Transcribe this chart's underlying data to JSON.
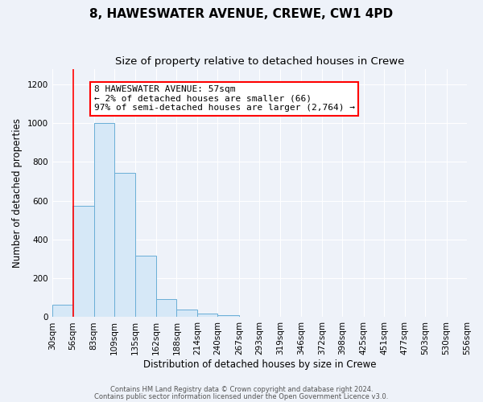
{
  "title": "8, HAWESWATER AVENUE, CREWE, CW1 4PD",
  "subtitle": "Size of property relative to detached houses in Crewe",
  "xlabel": "Distribution of detached houses by size in Crewe",
  "ylabel": "Number of detached properties",
  "bar_edges": [
    30,
    56,
    83,
    109,
    135,
    162,
    188,
    214,
    240,
    267,
    293,
    319,
    346,
    372,
    398,
    425,
    451,
    477,
    503,
    530,
    556
  ],
  "bar_heights": [
    65,
    575,
    1000,
    745,
    315,
    95,
    40,
    20,
    10,
    0,
    0,
    0,
    0,
    0,
    0,
    0,
    0,
    0,
    0,
    0
  ],
  "bar_color": "#d6e8f7",
  "bar_edge_color": "#6aaed6",
  "red_line_x": 57,
  "ylim": [
    0,
    1280
  ],
  "yticks": [
    0,
    200,
    400,
    600,
    800,
    1000,
    1200
  ],
  "annotation_line1": "8 HAWESWATER AVENUE: 57sqm",
  "annotation_line2": "← 2% of detached houses are smaller (66)",
  "annotation_line3": "97% of semi-detached houses are larger (2,764) →",
  "footer_line1": "Contains HM Land Registry data © Crown copyright and database right 2024.",
  "footer_line2": "Contains public sector information licensed under the Open Government Licence v3.0.",
  "background_color": "#eef2f9",
  "grid_color": "#ffffff",
  "title_fontsize": 11,
  "subtitle_fontsize": 9.5,
  "axis_label_fontsize": 8.5,
  "tick_label_fontsize": 7.5,
  "footer_fontsize": 6,
  "annotation_fontsize": 8
}
